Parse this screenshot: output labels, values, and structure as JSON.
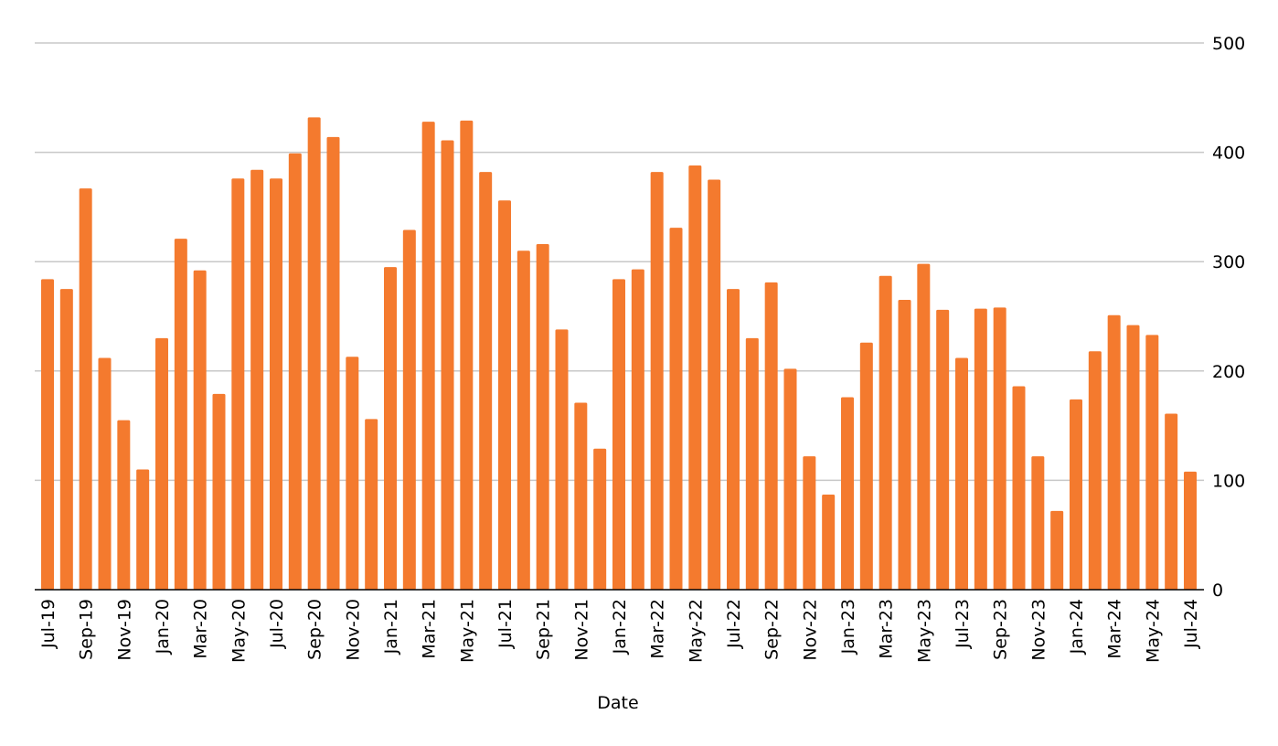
{
  "colors": {
    "bar": "#f47a2e",
    "grid": "#c8c8c8",
    "text": "#000000"
  },
  "chart_data": {
    "type": "bar",
    "title": "",
    "xlabel": "Date",
    "ylabel": "",
    "ylim": [
      0,
      500
    ],
    "y_ticks": [
      0,
      100,
      200,
      300,
      400,
      500
    ],
    "y_axis_position": "right",
    "grid": true,
    "legend": "none",
    "categories": [
      "Jul-19",
      "Aug-19",
      "Sep-19",
      "Oct-19",
      "Nov-19",
      "Dec-19",
      "Jan-20",
      "Feb-20",
      "Mar-20",
      "Apr-20",
      "May-20",
      "Jun-20",
      "Jul-20",
      "Aug-20",
      "Sep-20",
      "Oct-20",
      "Nov-20",
      "Dec-20",
      "Jan-21",
      "Feb-21",
      "Mar-21",
      "Apr-21",
      "May-21",
      "Jun-21",
      "Jul-21",
      "Aug-21",
      "Sep-21",
      "Oct-21",
      "Nov-21",
      "Dec-21",
      "Jan-22",
      "Feb-22",
      "Mar-22",
      "Apr-22",
      "May-22",
      "Jun-22",
      "Jul-22",
      "Aug-22",
      "Sep-22",
      "Oct-22",
      "Nov-22",
      "Dec-22",
      "Jan-23",
      "Feb-23",
      "Mar-23",
      "Apr-23",
      "May-23",
      "Jun-23",
      "Jul-23",
      "Aug-23",
      "Sep-23",
      "Oct-23",
      "Nov-23",
      "Dec-23",
      "Jan-24",
      "Feb-24",
      "Mar-24",
      "Apr-24",
      "May-24",
      "Jun-24",
      "Jul-24"
    ],
    "x_tick_labels": [
      "Jul-19",
      "Sep-19",
      "Nov-19",
      "Jan-20",
      "Mar-20",
      "May-20",
      "Jul-20",
      "Sep-20",
      "Nov-20",
      "Jan-21",
      "Mar-21",
      "May-21",
      "Jul-21",
      "Sep-21",
      "Nov-21",
      "Jan-22",
      "Mar-22",
      "May-22",
      "Jul-22",
      "Sep-22",
      "Nov-22",
      "Jan-23",
      "Mar-23",
      "May-23",
      "Jul-23",
      "Sep-23",
      "Nov-23",
      "Jan-24",
      "Mar-24",
      "May-24",
      "Jul-24"
    ],
    "values": [
      284,
      275,
      367,
      212,
      155,
      110,
      230,
      321,
      292,
      179,
      376,
      384,
      376,
      399,
      432,
      414,
      213,
      156,
      295,
      329,
      428,
      411,
      429,
      382,
      356,
      310,
      316,
      238,
      171,
      129,
      284,
      293,
      382,
      331,
      388,
      375,
      275,
      230,
      281,
      202,
      122,
      87,
      176,
      226,
      287,
      265,
      298,
      256,
      212,
      257,
      258,
      186,
      122,
      72,
      174,
      218,
      251,
      242,
      233,
      161,
      108
    ]
  }
}
